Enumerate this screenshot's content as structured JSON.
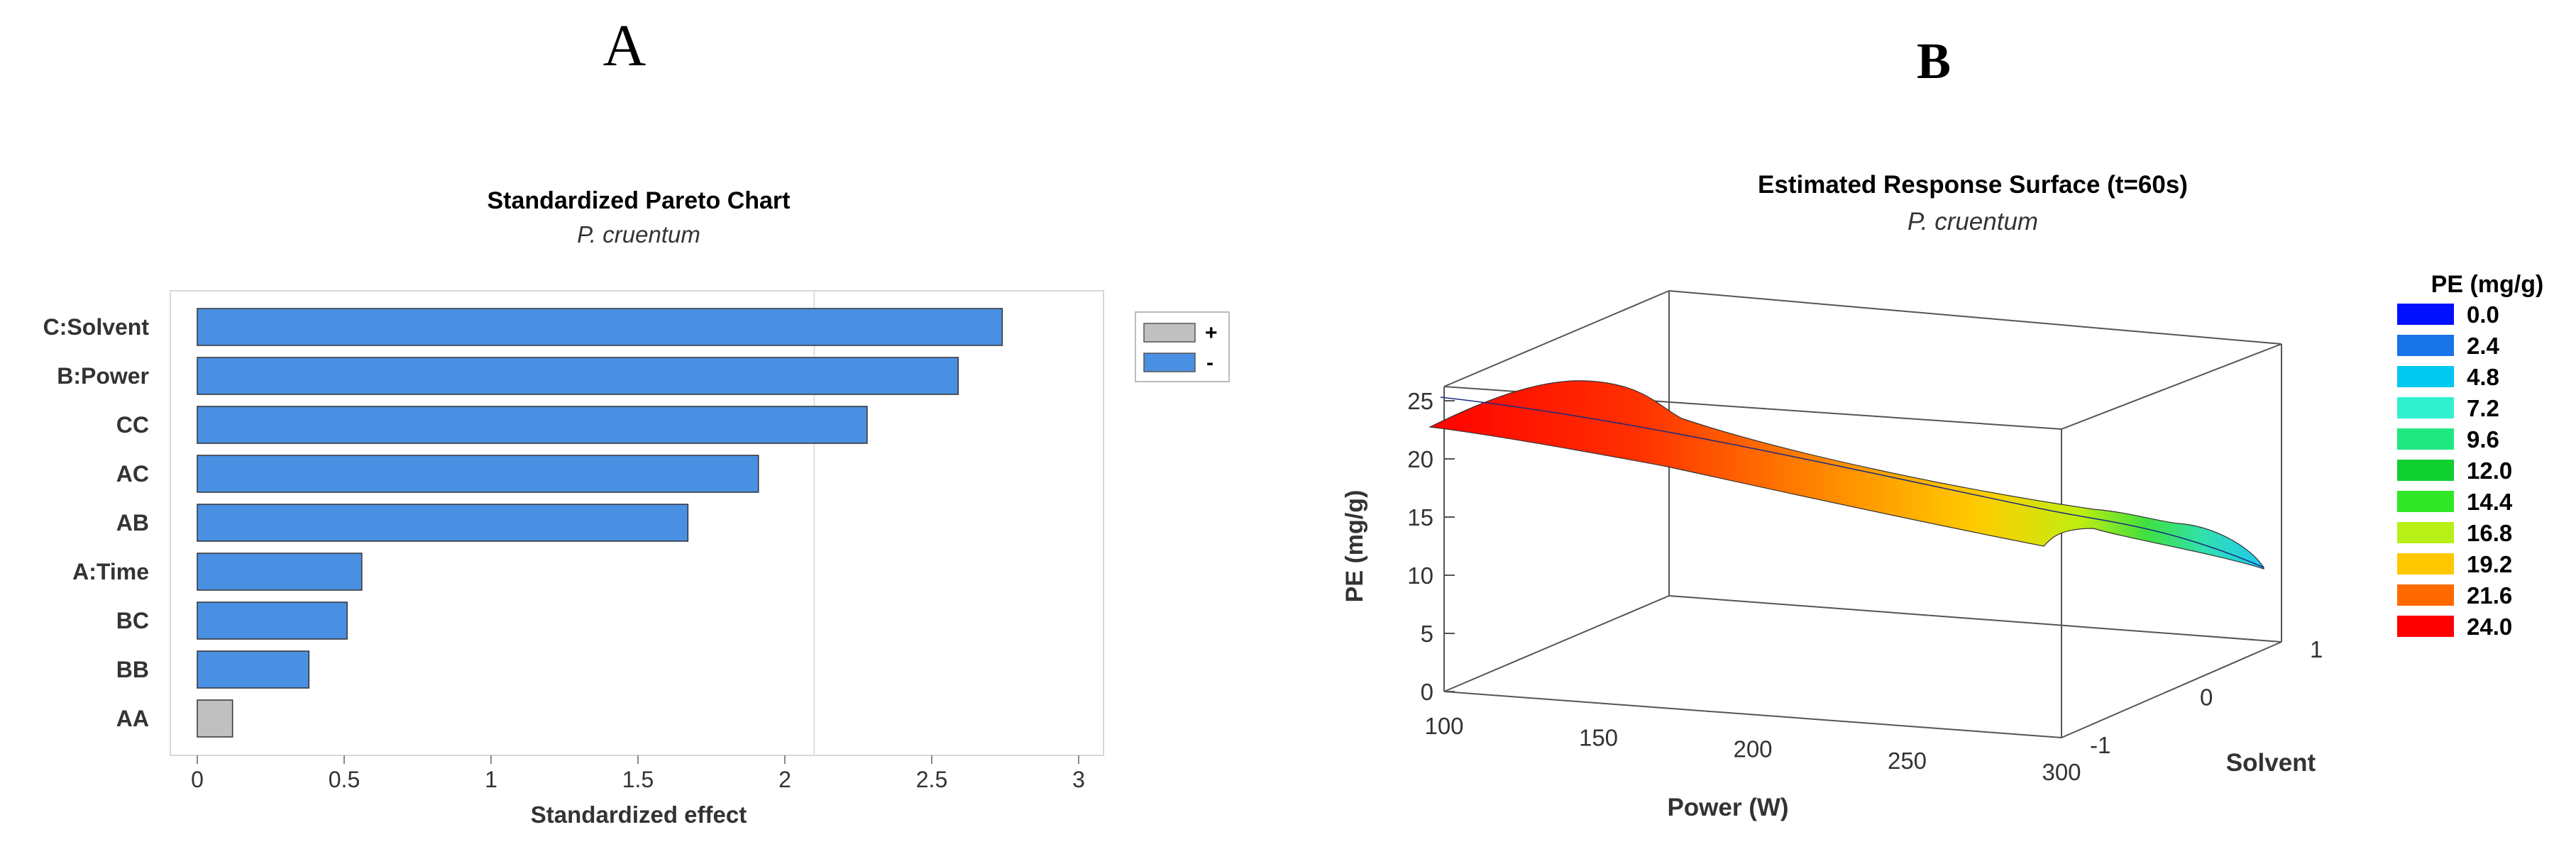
{
  "panels": {
    "a": {
      "letter": "A"
    },
    "b": {
      "letter": "B"
    }
  },
  "chart_data": [
    {
      "type": "bar",
      "orientation": "horizontal",
      "title": "Standardized Pareto Chart",
      "subtitle": "P. cruentum",
      "xlabel": "Standardized effect",
      "ylabel": "",
      "categories": [
        "C:Solvent",
        "B:Power",
        "CC",
        "AC",
        "AB",
        "A:Time",
        "BC",
        "BB",
        "AA"
      ],
      "values": [
        2.74,
        2.59,
        2.28,
        1.91,
        1.67,
        0.56,
        0.51,
        0.38,
        0.12
      ],
      "signs": [
        "-",
        "-",
        "-",
        "-",
        "-",
        "-",
        "-",
        "-",
        "+"
      ],
      "xlim": [
        0,
        3
      ],
      "xticks": [
        "0",
        "0.5",
        "1",
        "1.5",
        "2",
        "2.5",
        "3"
      ],
      "reference_line": 2.1,
      "legend": {
        "position": "top-right",
        "entries": [
          {
            "label": "+",
            "color": "#c0c0c0"
          },
          {
            "label": "-",
            "color": "#4a90e2"
          }
        ]
      },
      "grid": false
    },
    {
      "type": "surface",
      "title": "Estimated Response Surface (t=60s)",
      "subtitle": "P. cruentum",
      "xlabel": "Power (W)",
      "ylabel": "Solvent",
      "zlabel": "PE (mg/g)",
      "xlim": [
        100,
        300
      ],
      "ylim": [
        -1,
        1
      ],
      "zlim": [
        0,
        25
      ],
      "xticks": [
        "100",
        "150",
        "200",
        "250",
        "300"
      ],
      "yticks": [
        "-1",
        "0",
        "1"
      ],
      "zticks": [
        "0",
        "5",
        "10",
        "15",
        "20",
        "25"
      ],
      "legend": {
        "title": "PE (mg/g)",
        "position": "right",
        "entries": [
          {
            "label": "0.0",
            "color": "#0010ff"
          },
          {
            "label": "2.4",
            "color": "#1873e8"
          },
          {
            "label": "4.8",
            "color": "#00c8f0"
          },
          {
            "label": "7.2",
            "color": "#30f0d0"
          },
          {
            "label": "9.6",
            "color": "#20e880"
          },
          {
            "label": "12.0",
            "color": "#10d030"
          },
          {
            "label": "14.4",
            "color": "#30e828"
          },
          {
            "label": "16.8",
            "color": "#b8f018"
          },
          {
            "label": "19.2",
            "color": "#ffc800"
          },
          {
            "label": "21.6",
            "color": "#ff6a00"
          },
          {
            "label": "24.0",
            "color": "#ff0000"
          }
        ]
      }
    }
  ]
}
